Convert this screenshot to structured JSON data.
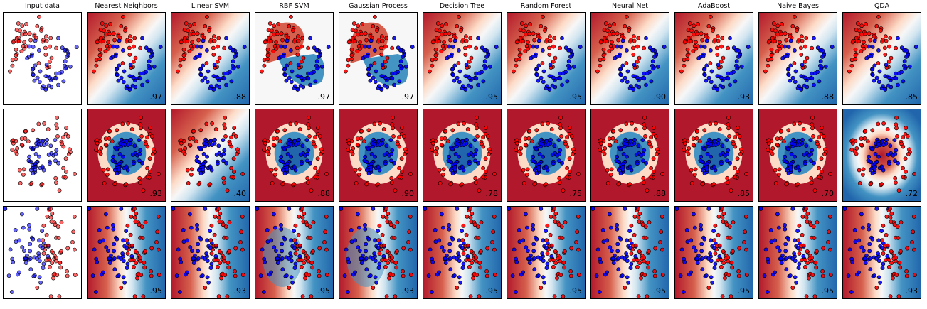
{
  "chart_data": {
    "type": "scatter",
    "description": "Classifier comparison grid: 3 datasets (rows) x 11 columns (input data + 10 classifiers). Background shading is each classifier's decision function; number in the corner is test accuracy.",
    "columns": [
      "Input data",
      "Nearest Neighbors",
      "Linear SVM",
      "RBF SVM",
      "Gaussian Process",
      "Decision Tree",
      "Random Forest",
      "Neural Net",
      "AdaBoost",
      "Naive Bayes",
      "QDA"
    ],
    "rows": [
      "moons",
      "circles",
      "linearly separable"
    ],
    "scores": [
      [
        "",
        ".97",
        ".88",
        ".97",
        ".97",
        ".95",
        ".95",
        ".90",
        ".93",
        ".88",
        ".85"
      ],
      [
        "",
        ".93",
        ".40",
        ".88",
        ".90",
        ".78",
        ".75",
        ".88",
        ".85",
        ".70",
        ".72"
      ],
      [
        "",
        ".95",
        ".93",
        ".95",
        ".93",
        ".95",
        ".95",
        ".95",
        ".95",
        ".95",
        ".93"
      ]
    ],
    "classes": [
      "class 0 (red)",
      "class 1 (blue)"
    ],
    "colors": {
      "class0": "#ff0000",
      "class1": "#0000ff",
      "cmap_low": "#b2182b",
      "cmap_mid": "#f7f7f7",
      "cmap_high": "#2166ac"
    },
    "axes": {
      "xticks": false,
      "yticks": false,
      "grid": false
    }
  }
}
